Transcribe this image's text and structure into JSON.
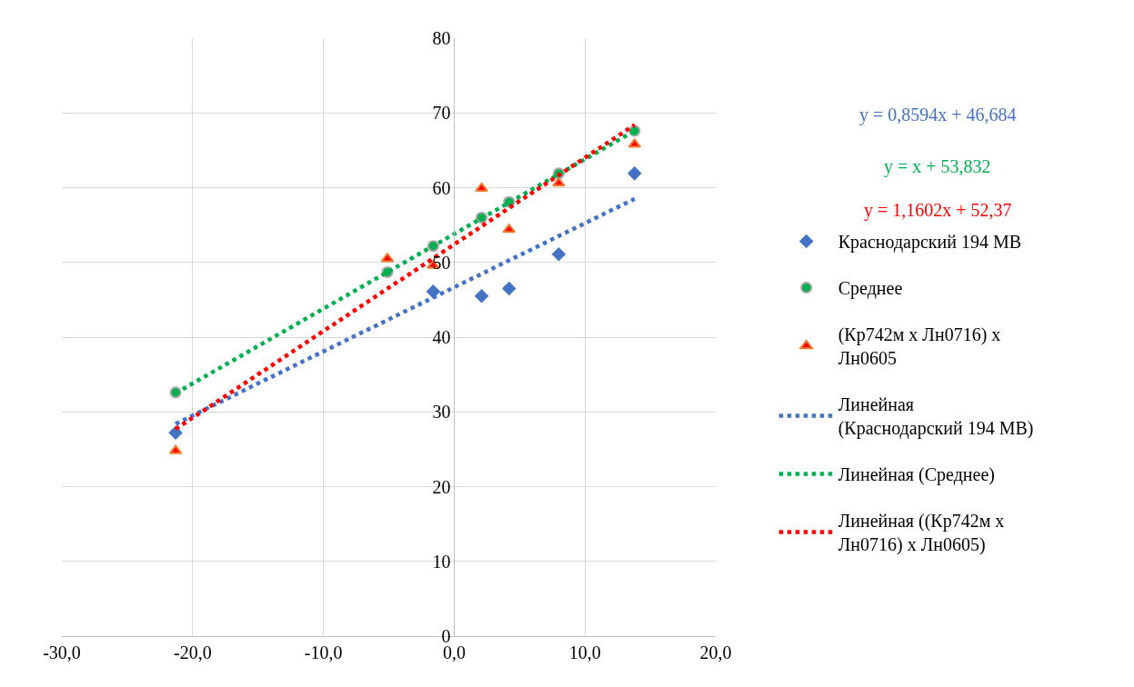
{
  "chart_data": {
    "type": "scatter",
    "xlim": [
      -30,
      20
    ],
    "xticks": [
      {
        "value": -30,
        "label": "-30,0"
      },
      {
        "value": -20,
        "label": "-20,0"
      },
      {
        "value": -10,
        "label": "-10,0"
      },
      {
        "value": 0,
        "label": "0,0"
      },
      {
        "value": 10,
        "label": "10,0"
      },
      {
        "value": 20,
        "label": "20,0"
      }
    ],
    "ylim": [
      0,
      80
    ],
    "yticks": [
      0,
      10,
      20,
      30,
      40,
      50,
      60,
      70,
      80
    ],
    "grid": true,
    "legend": "right",
    "annotations": [
      "y = 0,8594x + 46,684",
      "y = x + 53,832",
      "y = 1,1602x + 52,37"
    ],
    "series": [
      {
        "name": "Краснодарский 194 МВ",
        "marker": "diamond",
        "color": "#4472c4",
        "x": [
          -21.3,
          -5.1,
          -1.6,
          2.1,
          4.2,
          8.0,
          13.8
        ],
        "values": [
          27.2,
          null,
          46.1,
          45.5,
          46.5,
          51.1,
          61.9
        ]
      },
      {
        "name": "Среднее",
        "marker": "circle",
        "color": "#00b050",
        "x": [
          -21.3,
          -5.1,
          -1.6,
          2.1,
          4.2,
          8.0,
          13.8
        ],
        "values": [
          32.6,
          48.7,
          52.2,
          56.0,
          58.1,
          61.9,
          67.6
        ]
      },
      {
        "name": "(Кр742м х Лн0716) х Лн0605",
        "marker": "triangle",
        "color": "#ff0000",
        "x": [
          -21.3,
          -5.1,
          -1.6,
          2.1,
          4.2,
          8.0,
          13.8
        ],
        "values": [
          24.8,
          50.5,
          49.6,
          59.9,
          54.4,
          60.6,
          65.8
        ]
      },
      {
        "name": "Линейная (Краснодарский 194 МВ)",
        "type": "line",
        "marker": "none",
        "line_style": "dotted",
        "color": "#4472c4",
        "x": [
          -21.3,
          13.8
        ],
        "values": [
          28.4,
          58.5
        ]
      },
      {
        "name": "Линейная (Среднее)",
        "type": "line",
        "marker": "none",
        "line_style": "dotted",
        "color": "#00b050",
        "x": [
          -21.3,
          13.8
        ],
        "values": [
          32.5,
          67.6
        ]
      },
      {
        "name": "Линейная ((Кр742м х Лн0716) х Лн0605)",
        "type": "line",
        "marker": "none",
        "line_style": "dotted",
        "color": "#ff0000",
        "x": [
          -21.3,
          13.8
        ],
        "values": [
          27.7,
          68.4
        ]
      }
    ]
  }
}
